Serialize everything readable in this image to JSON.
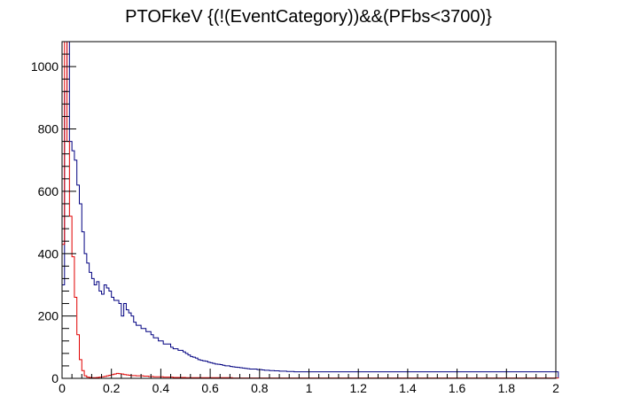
{
  "chart_data": {
    "type": "histogram",
    "title": "PTOFkeV {(!(EventCategory))&&(PFbs<3700)}",
    "xlabel": "",
    "ylabel": "",
    "xlim": [
      0,
      2
    ],
    "ylim": [
      0,
      1080
    ],
    "x_ticks": [
      "0",
      "0.2",
      "0.4",
      "0.6",
      "0.8",
      "1",
      "1.2",
      "1.4",
      "1.6",
      "1.8",
      "2"
    ],
    "y_ticks": [
      "0",
      "200",
      "400",
      "600",
      "800",
      "1000"
    ],
    "bin_width": 0.01,
    "series": [
      {
        "color": "#000080",
        "values": [
          300,
          920,
          1080,
          760,
          730,
          700,
          620,
          560,
          470,
          400,
          370,
          340,
          320,
          300,
          310,
          280,
          270,
          300,
          290,
          280,
          260,
          250,
          250,
          240,
          200,
          240,
          220,
          210,
          200,
          180,
          170,
          170,
          160,
          160,
          150,
          150,
          140,
          130,
          130,
          120,
          120,
          110,
          110,
          110,
          100,
          95,
          95,
          90,
          90,
          85,
          80,
          75,
          70,
          68,
          65,
          60,
          58,
          56,
          55,
          52,
          50,
          48,
          46,
          45,
          44,
          42,
          40,
          40,
          38,
          37,
          36,
          35,
          34,
          33,
          32,
          31,
          30,
          30,
          30,
          28,
          28,
          27,
          26,
          26,
          25,
          25,
          24,
          24,
          23,
          23,
          23,
          22,
          22,
          22,
          21,
          21,
          21,
          21,
          21,
          21,
          21,
          21,
          21,
          21,
          21,
          21,
          21,
          21,
          21,
          21,
          21,
          21,
          21,
          21,
          21,
          21,
          21,
          21,
          21,
          21,
          21,
          21,
          21,
          21,
          21,
          21,
          21,
          21,
          21,
          21,
          21,
          21,
          21,
          21,
          21,
          21,
          21,
          21,
          21,
          21,
          21,
          21,
          21,
          21,
          21,
          21,
          21,
          21,
          21,
          21,
          21,
          21,
          21,
          21,
          21,
          21,
          21,
          21,
          21,
          21,
          21,
          21,
          21,
          21,
          21,
          21,
          21,
          21,
          21,
          21,
          21,
          21,
          21,
          21,
          21,
          21,
          21,
          21,
          21,
          21,
          21,
          21,
          21,
          21,
          21,
          21,
          21,
          21,
          21,
          21,
          21,
          21,
          21,
          21,
          21,
          21,
          21,
          21,
          21,
          21,
          21
        ]
      },
      {
        "color": "#e00000",
        "values": [
          430,
          1080,
          760,
          520,
          390,
          260,
          140,
          60,
          25,
          8,
          4,
          3,
          2,
          2,
          3,
          4,
          5,
          6,
          8,
          10,
          12,
          14,
          16,
          15,
          14,
          12,
          11,
          10,
          9,
          9,
          8,
          8,
          8,
          7,
          7,
          6,
          6,
          5,
          5,
          5,
          5,
          4,
          4,
          4,
          4,
          3,
          3,
          3,
          3,
          3,
          2,
          2,
          2,
          2,
          2,
          2,
          2,
          2,
          2,
          2,
          2,
          2,
          2,
          2,
          2,
          2,
          2,
          2,
          2,
          1,
          1,
          1,
          1,
          1,
          1,
          1,
          1,
          1,
          1,
          1,
          1,
          1,
          1,
          1,
          1,
          1,
          1,
          1,
          1,
          1,
          1,
          1,
          1,
          1,
          1,
          1,
          1,
          1,
          1,
          1,
          1,
          1,
          1,
          1,
          1,
          1,
          1,
          1,
          1,
          1,
          1,
          1,
          1,
          1,
          1,
          1,
          1,
          1,
          1,
          1,
          1,
          1,
          1,
          1,
          1,
          1,
          1,
          1,
          1,
          1,
          1,
          1,
          1,
          1,
          1,
          1,
          1,
          1,
          1,
          1,
          1,
          1,
          1,
          1,
          1,
          1,
          1,
          1,
          1,
          1,
          1,
          1,
          1,
          1,
          1,
          1,
          1,
          1,
          1,
          1,
          1,
          1,
          1,
          1,
          1,
          1,
          1,
          1,
          1,
          1,
          1,
          1,
          1,
          1,
          1,
          1,
          1,
          1,
          1,
          1,
          1,
          1,
          1,
          1,
          1,
          1,
          1,
          1,
          1,
          1,
          1,
          1,
          1,
          1,
          1,
          1,
          1,
          1,
          1,
          1,
          1
        ]
      }
    ]
  }
}
